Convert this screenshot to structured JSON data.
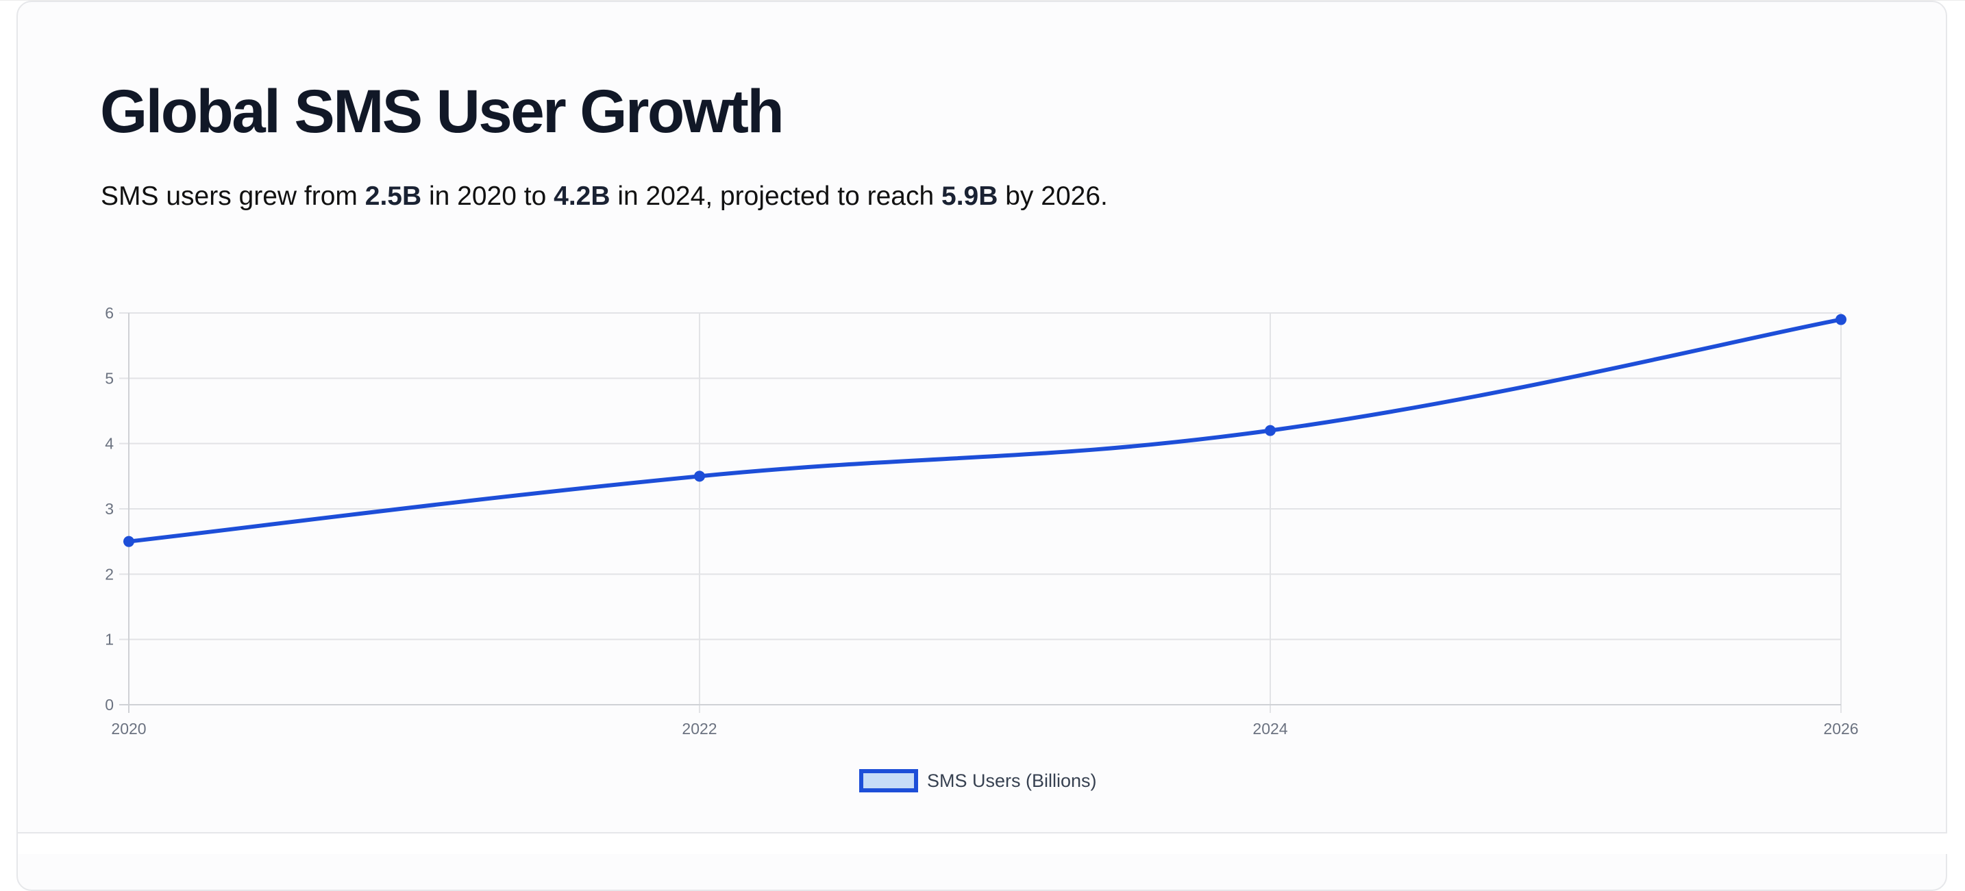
{
  "header": {
    "title": "Global SMS User Growth",
    "summary": {
      "part1": "SMS users grew from ",
      "value1": "2.5B",
      "part2": " in 2020 to ",
      "value2": "4.2B",
      "part3": " in 2024, projected to reach ",
      "value3": "5.9B",
      "part4": " by 2026."
    }
  },
  "colors": {
    "line": "#1d4ed8",
    "fill": "#c7dcf7",
    "grid": "#e2e3e6",
    "axis_text": "#6b7280",
    "title": "#111827"
  },
  "chart_data": {
    "type": "line",
    "title": "Global SMS User Growth",
    "subtitle": "SMS users grew from 2.5B in 2020 to 4.2B in 2024, projected to reach 5.9B by 2026.",
    "categories": [
      "2020",
      "2022",
      "2024",
      "2026"
    ],
    "series": [
      {
        "name": "SMS Users (Billions)",
        "values": [
          2.5,
          3.5,
          4.2,
          5.9
        ]
      }
    ],
    "xlabel": "",
    "ylabel": "",
    "ylim": [
      0,
      6
    ],
    "yticks": [
      "0",
      "1",
      "2",
      "3",
      "4",
      "5",
      "6"
    ],
    "grid": true,
    "legend_position": "bottom",
    "smooth": true
  },
  "legend": {
    "label": "SMS Users (Billions)"
  }
}
